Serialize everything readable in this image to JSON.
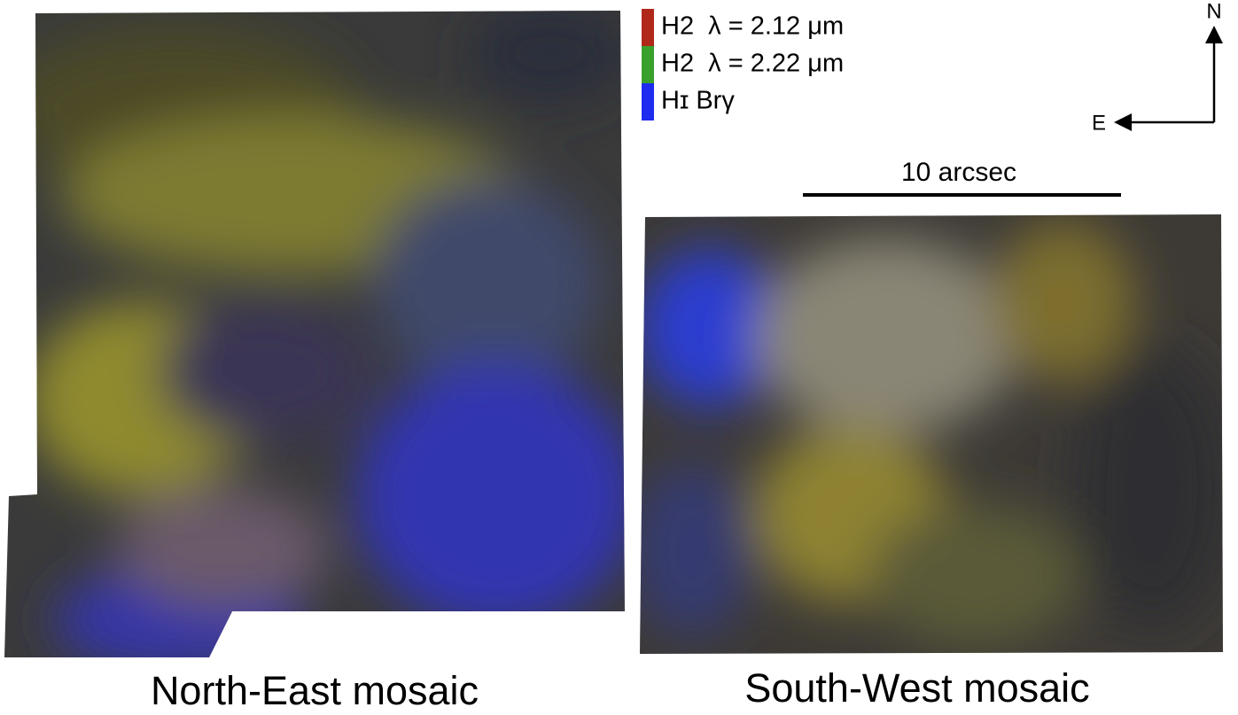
{
  "legend": {
    "items": [
      {
        "label": "H2  λ = 2.12 μm",
        "color": "#b0281a"
      },
      {
        "label": "H2  λ = 2.22 μm",
        "color": "#3aa02c"
      },
      {
        "label": "Hɪ Brγ",
        "color": "#1e2cf0"
      }
    ]
  },
  "compass": {
    "north": "N",
    "east": "E"
  },
  "scale_bar": {
    "label": "10 arcsec"
  },
  "panels": [
    {
      "caption": "North-East mosaic"
    },
    {
      "caption": "South-West mosaic"
    }
  ]
}
